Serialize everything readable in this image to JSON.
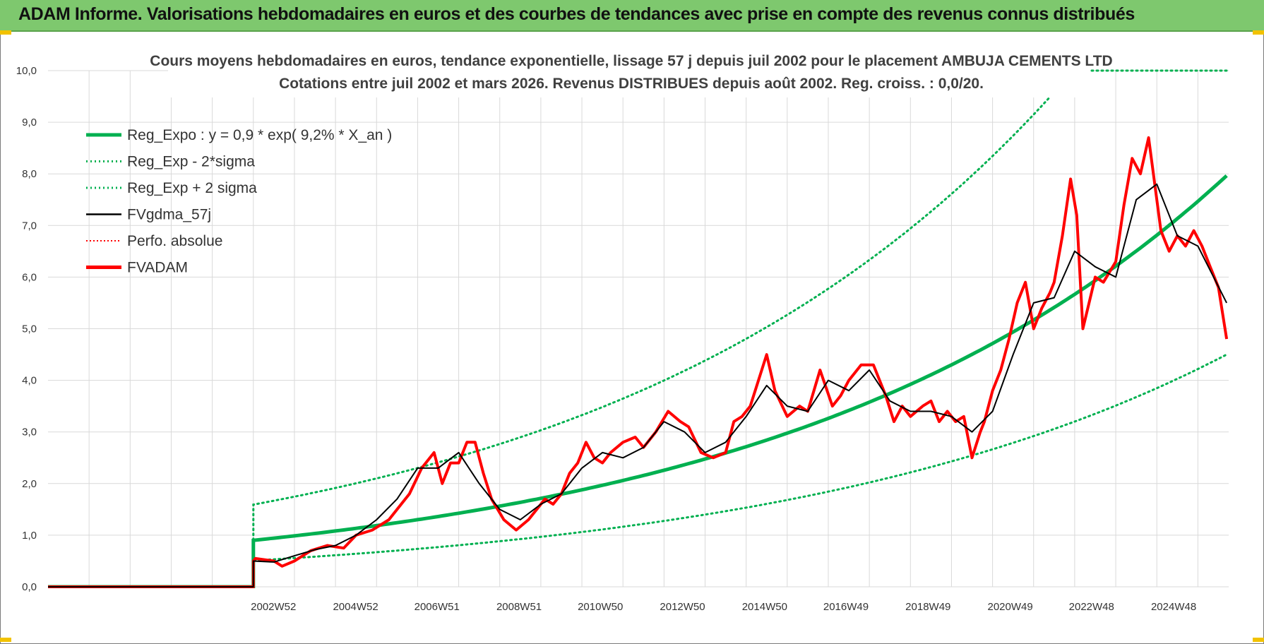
{
  "banner": {
    "title": "ADAM Informe. Valorisations hebdomadaires en euros et des courbes de tendances avec prise en compte des revenus connus distribués"
  },
  "colors": {
    "banner_bg": "#7ec86e",
    "trend": "#00b050",
    "smooth": "#000000",
    "price": "#ff0000",
    "grid": "#d9d9d9"
  },
  "chart_data": {
    "type": "line",
    "title_line1": "Cours moyens hebdomadaires en euros, tendance exponentielle, lissage 57 j depuis juil 2002 pour le placement AMBUJA CEMENTS LTD",
    "title_line2": "Cotations entre juil 2002 et mars 2026. Revenus DISTRIBUES depuis août 2002. Reg. croiss. : 0,0/20.",
    "ylim": [
      0,
      10
    ],
    "xlim": [
      1997.5,
      2026.25
    ],
    "y_ticks": [
      "0,0",
      "1,0",
      "2,0",
      "3,0",
      "4,0",
      "5,0",
      "6,0",
      "7,0",
      "8,0",
      "9,0",
      "10,0"
    ],
    "x_ticks": [
      {
        "label": "2002W52",
        "x": 2002.99
      },
      {
        "label": "2004W52",
        "x": 2004.99
      },
      {
        "label": "2006W51",
        "x": 2006.97
      },
      {
        "label": "2008W51",
        "x": 2008.97
      },
      {
        "label": "2010W50",
        "x": 2010.95
      },
      {
        "label": "2012W50",
        "x": 2012.95
      },
      {
        "label": "2014W50",
        "x": 2014.95
      },
      {
        "label": "2016W49",
        "x": 2016.93
      },
      {
        "label": "2018W49",
        "x": 2018.93
      },
      {
        "label": "2020W49",
        "x": 2020.93
      },
      {
        "label": "2022W48",
        "x": 2022.91
      },
      {
        "label": "2024W48",
        "x": 2024.91
      }
    ],
    "legend": [
      {
        "label": "Reg_Expo : y = 0,9 * exp( 9,2% *  X_an )",
        "key": "reg",
        "color": "#00b050",
        "style": "solid-thick"
      },
      {
        "label": "Reg_Exp - 2*sigma",
        "key": "low",
        "color": "#00b050",
        "style": "dotted"
      },
      {
        "label": "Reg_Exp + 2 sigma",
        "key": "high",
        "color": "#00b050",
        "style": "dotted"
      },
      {
        "label": "FVgdma_57j",
        "key": "smooth",
        "color": "#000000",
        "style": "solid-thin"
      },
      {
        "label": "Perfo. absolue",
        "key": "perfo",
        "color": "#ff0000",
        "style": "dotted-thin"
      },
      {
        "label": "FVADAM",
        "key": "price",
        "color": "#ff0000",
        "style": "solid-thick"
      }
    ],
    "series": [
      {
        "name": "FVADAM",
        "x": [
          1997.5,
          2002.5,
          2002.5,
          2002.55,
          2003.0,
          2003.2,
          2003.5,
          2003.9,
          2004.3,
          2004.7,
          2005.0,
          2005.4,
          2005.8,
          2006.0,
          2006.3,
          2006.6,
          2006.9,
          2007.1,
          2007.3,
          2007.5,
          2007.7,
          2007.9,
          2008.1,
          2008.3,
          2008.6,
          2008.9,
          2009.2,
          2009.4,
          2009.6,
          2009.8,
          2010.0,
          2010.2,
          2010.4,
          2010.6,
          2010.8,
          2011.0,
          2011.2,
          2011.5,
          2011.8,
          2012.0,
          2012.3,
          2012.6,
          2012.9,
          2013.1,
          2013.4,
          2013.7,
          2014.0,
          2014.2,
          2014.4,
          2014.6,
          2014.8,
          2015.0,
          2015.2,
          2015.5,
          2015.8,
          2016.0,
          2016.3,
          2016.6,
          2016.8,
          2017.0,
          2017.3,
          2017.6,
          2017.9,
          2018.1,
          2018.3,
          2018.5,
          2018.8,
          2019.0,
          2019.2,
          2019.4,
          2019.6,
          2019.8,
          2020.0,
          2020.2,
          2020.3,
          2020.5,
          2020.7,
          2020.9,
          2021.1,
          2021.3,
          2021.5,
          2021.7,
          2021.9,
          2022.0,
          2022.2,
          2022.4,
          2022.55,
          2022.7,
          2022.85,
          2023.0,
          2023.2,
          2023.5,
          2023.7,
          2023.9,
          2024.1,
          2024.3,
          2024.45,
          2024.6,
          2024.8,
          2025.0,
          2025.2,
          2025.4,
          2025.6,
          2025.8,
          2026.0,
          2026.2
        ],
        "values": [
          0,
          0,
          0.5,
          0.55,
          0.5,
          0.4,
          0.5,
          0.7,
          0.8,
          0.75,
          1.0,
          1.1,
          1.3,
          1.5,
          1.8,
          2.3,
          2.6,
          2.0,
          2.4,
          2.4,
          2.8,
          2.8,
          2.2,
          1.7,
          1.3,
          1.1,
          1.3,
          1.5,
          1.7,
          1.6,
          1.8,
          2.2,
          2.4,
          2.8,
          2.5,
          2.4,
          2.6,
          2.8,
          2.9,
          2.7,
          3.0,
          3.4,
          3.2,
          3.1,
          2.6,
          2.5,
          2.6,
          3.2,
          3.3,
          3.5,
          4.0,
          4.5,
          3.8,
          3.3,
          3.5,
          3.4,
          4.2,
          3.5,
          3.7,
          4.0,
          4.3,
          4.3,
          3.7,
          3.2,
          3.5,
          3.3,
          3.5,
          3.6,
          3.2,
          3.4,
          3.2,
          3.3,
          2.5,
          3.0,
          3.2,
          3.8,
          4.2,
          4.8,
          5.5,
          5.9,
          5.0,
          5.4,
          5.7,
          5.9,
          6.8,
          7.9,
          7.2,
          5.0,
          5.5,
          6.0,
          5.9,
          6.3,
          7.4,
          8.3,
          8.0,
          8.7,
          7.8,
          6.9,
          6.5,
          6.8,
          6.6,
          6.9,
          6.6,
          6.2,
          5.8,
          4.8
        ]
      },
      {
        "name": "FVgdma_57j",
        "x": [
          1997.5,
          2002.5,
          2002.5,
          2003.0,
          2003.5,
          2004.0,
          2004.5,
          2005.0,
          2005.5,
          2006.0,
          2006.5,
          2007.0,
          2007.5,
          2008.0,
          2008.5,
          2009.0,
          2009.5,
          2010.0,
          2010.5,
          2011.0,
          2011.5,
          2012.0,
          2012.5,
          2013.0,
          2013.5,
          2014.0,
          2014.5,
          2015.0,
          2015.5,
          2016.0,
          2016.5,
          2017.0,
          2017.5,
          2018.0,
          2018.5,
          2019.0,
          2019.5,
          2020.0,
          2020.5,
          2021.0,
          2021.5,
          2022.0,
          2022.5,
          2023.0,
          2023.5,
          2024.0,
          2024.5,
          2025.0,
          2025.5,
          2026.2
        ],
        "values": [
          0,
          0,
          0.5,
          0.48,
          0.6,
          0.72,
          0.8,
          1.0,
          1.3,
          1.7,
          2.3,
          2.3,
          2.6,
          2.0,
          1.5,
          1.3,
          1.6,
          1.8,
          2.3,
          2.6,
          2.5,
          2.7,
          3.2,
          3.0,
          2.6,
          2.8,
          3.3,
          3.9,
          3.5,
          3.4,
          4.0,
          3.8,
          4.2,
          3.6,
          3.4,
          3.4,
          3.3,
          3.0,
          3.4,
          4.5,
          5.5,
          5.6,
          6.5,
          6.2,
          6.0,
          7.5,
          7.8,
          6.8,
          6.6,
          5.5
        ]
      }
    ],
    "trend": {
      "start_x": 2002.5,
      "end_x": 2026.2,
      "a": 0.9,
      "rate": 0.092,
      "band_factor": 1.77
    }
  }
}
